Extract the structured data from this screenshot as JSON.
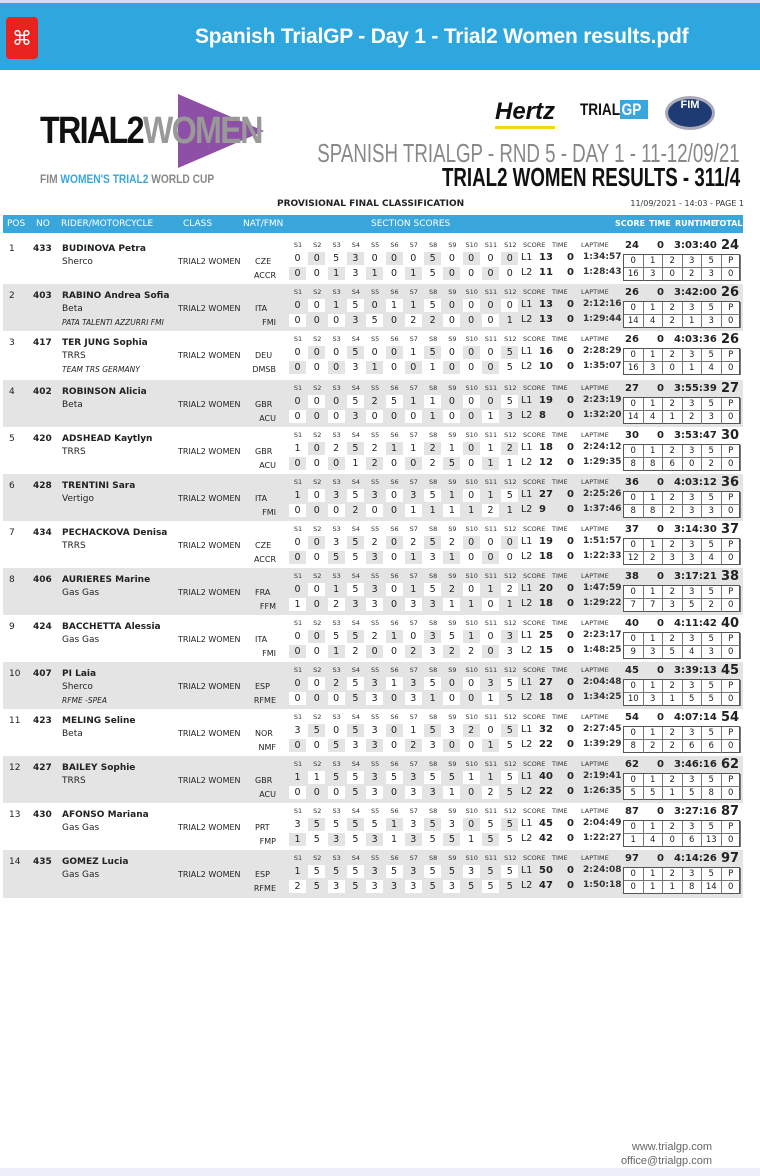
{
  "viewer": {
    "title": "Spanish TrialGP - Day 1 - Trial2 Women results.pdf",
    "icon": "pdf-icon"
  },
  "logo": {
    "text_main": "TRIAL2",
    "text_accent": "WOMEN",
    "sub_1": "FIM ",
    "sub_2": "WOMEN'S TRIAL2",
    "sub_3": " WORLD CUP"
  },
  "sponsors": {
    "hertz": "Hertz",
    "trialgp_1": "TRIAL",
    "trialgp_2": "GP",
    "fim": "FIM"
  },
  "header": {
    "event": "SPANISH TRIALGP - RND 5 - DAY 1 - 11-12/09/21",
    "results": "TRIAL2 WOMEN RESULTS - 311/4",
    "classification": "PROVISIONAL FINAL CLASSIFICATION",
    "stamp": "11/09/2021 - 14:03 - PAGE 1"
  },
  "columns": {
    "pos": "POS",
    "no": "NO",
    "rider": "RIDER/MOTORCYCLE",
    "class": "CLASS",
    "nat": "NAT/FMN",
    "sections": "SECTION SCORES",
    "score": "SCORE",
    "time": "TIME",
    "runtime": "RUNTIME",
    "total": "TOTAL"
  },
  "sub_columns": {
    "sections": [
      "S1",
      "S2",
      "S3",
      "S4",
      "S5",
      "S6",
      "S7",
      "S8",
      "S9",
      "S10",
      "S11",
      "S12"
    ],
    "score": "SCORE",
    "time": "TIME",
    "laptime": "LAPTIME",
    "breakdown": [
      "0",
      "1",
      "2",
      "3",
      "5",
      "P"
    ]
  },
  "riders": [
    {
      "pos": "1",
      "no": "433",
      "name": "BUDINOVA Petra",
      "bike": "Sherco",
      "team": "",
      "class": "TRIAL2 WOMEN",
      "nat": "CZE",
      "fmn": "ACCR",
      "laps": [
        {
          "lap": "L1",
          "s": [
            0,
            0,
            5,
            3,
            0,
            0,
            0,
            5,
            0,
            0,
            0,
            0
          ],
          "score": "13",
          "time": "0",
          "laptime": "1:34:57"
        },
        {
          "lap": "L2",
          "s": [
            0,
            0,
            1,
            3,
            1,
            0,
            1,
            5,
            0,
            0,
            0,
            0
          ],
          "score": "11",
          "time": "0",
          "laptime": "1:28:43"
        }
      ],
      "score": "24",
      "time": "0",
      "runtime": "3:03:40",
      "total": "24",
      "counts": [
        16,
        3,
        0,
        2,
        3,
        0
      ]
    },
    {
      "pos": "2",
      "no": "403",
      "name": "RABINO Andrea Sofia",
      "bike": "Beta",
      "team": "PATA TALENTI AZZURRI FMI",
      "class": "TRIAL2 WOMEN",
      "nat": "ITA",
      "fmn": "FMI",
      "laps": [
        {
          "lap": "L1",
          "s": [
            0,
            0,
            1,
            5,
            0,
            1,
            1,
            5,
            0,
            0,
            0,
            0
          ],
          "score": "13",
          "time": "0",
          "laptime": "2:12:16"
        },
        {
          "lap": "L2",
          "s": [
            0,
            0,
            0,
            3,
            5,
            0,
            2,
            2,
            0,
            0,
            0,
            1
          ],
          "score": "13",
          "time": "0",
          "laptime": "1:29:44"
        }
      ],
      "score": "26",
      "time": "0",
      "runtime": "3:42:00",
      "total": "26",
      "counts": [
        14,
        4,
        2,
        1,
        3,
        0
      ]
    },
    {
      "pos": "3",
      "no": "417",
      "name": "TER JUNG Sophia",
      "bike": "TRRS",
      "team": "TEAM TRS GERMANY",
      "class": "TRIAL2 WOMEN",
      "nat": "DEU",
      "fmn": "DMSB",
      "laps": [
        {
          "lap": "L1",
          "s": [
            0,
            0,
            0,
            5,
            0,
            0,
            1,
            5,
            0,
            0,
            0,
            5
          ],
          "score": "16",
          "time": "0",
          "laptime": "2:28:29"
        },
        {
          "lap": "L2",
          "s": [
            0,
            0,
            0,
            3,
            1,
            0,
            0,
            1,
            0,
            0,
            0,
            5
          ],
          "score": "10",
          "time": "0",
          "laptime": "1:35:07"
        }
      ],
      "score": "26",
      "time": "0",
      "runtime": "4:03:36",
      "total": "26",
      "counts": [
        16,
        3,
        0,
        1,
        4,
        0
      ]
    },
    {
      "pos": "4",
      "no": "402",
      "name": "ROBINSON Alicia",
      "bike": "Beta",
      "team": "",
      "class": "TRIAL2 WOMEN",
      "nat": "GBR",
      "fmn": "ACU",
      "laps": [
        {
          "lap": "L1",
          "s": [
            0,
            0,
            0,
            5,
            2,
            5,
            1,
            1,
            0,
            0,
            0,
            5
          ],
          "score": "19",
          "time": "0",
          "laptime": "2:23:19"
        },
        {
          "lap": "L2",
          "s": [
            0,
            0,
            0,
            3,
            0,
            0,
            0,
            1,
            0,
            0,
            1,
            3
          ],
          "score": "8",
          "time": "0",
          "laptime": "1:32:20"
        }
      ],
      "score": "27",
      "time": "0",
      "runtime": "3:55:39",
      "total": "27",
      "counts": [
        14,
        4,
        1,
        2,
        3,
        0
      ]
    },
    {
      "pos": "5",
      "no": "420",
      "name": "ADSHEAD Kaytlyn",
      "bike": "TRRS",
      "team": "",
      "class": "TRIAL2 WOMEN",
      "nat": "GBR",
      "fmn": "ACU",
      "laps": [
        {
          "lap": "L1",
          "s": [
            1,
            0,
            2,
            5,
            2,
            1,
            1,
            2,
            1,
            0,
            1,
            2
          ],
          "score": "18",
          "time": "0",
          "laptime": "2:24:12"
        },
        {
          "lap": "L2",
          "s": [
            0,
            0,
            0,
            1,
            2,
            0,
            0,
            2,
            5,
            0,
            1,
            1
          ],
          "score": "12",
          "time": "0",
          "laptime": "1:29:35"
        }
      ],
      "score": "30",
      "time": "0",
      "runtime": "3:53:47",
      "total": "30",
      "counts": [
        8,
        8,
        6,
        0,
        2,
        0
      ]
    },
    {
      "pos": "6",
      "no": "428",
      "name": "TRENTINI Sara",
      "bike": "Vertigo",
      "team": "",
      "class": "TRIAL2 WOMEN",
      "nat": "ITA",
      "fmn": "FMI",
      "laps": [
        {
          "lap": "L1",
          "s": [
            1,
            0,
            3,
            5,
            3,
            0,
            3,
            5,
            1,
            0,
            1,
            5
          ],
          "score": "27",
          "time": "0",
          "laptime": "2:25:26"
        },
        {
          "lap": "L2",
          "s": [
            0,
            0,
            0,
            2,
            0,
            0,
            1,
            1,
            1,
            1,
            2,
            1
          ],
          "score": "9",
          "time": "0",
          "laptime": "1:37:46"
        }
      ],
      "score": "36",
      "time": "0",
      "runtime": "4:03:12",
      "total": "36",
      "counts": [
        8,
        8,
        2,
        3,
        3,
        0
      ]
    },
    {
      "pos": "7",
      "no": "434",
      "name": "PECHACKOVA Denisa",
      "bike": "TRRS",
      "team": "",
      "class": "TRIAL2 WOMEN",
      "nat": "CZE",
      "fmn": "ACCR",
      "laps": [
        {
          "lap": "L1",
          "s": [
            0,
            0,
            3,
            5,
            2,
            0,
            2,
            5,
            2,
            0,
            0,
            0
          ],
          "score": "19",
          "time": "0",
          "laptime": "1:51:57"
        },
        {
          "lap": "L2",
          "s": [
            0,
            0,
            5,
            5,
            3,
            0,
            1,
            3,
            1,
            0,
            0,
            0
          ],
          "score": "18",
          "time": "0",
          "laptime": "1:22:33"
        }
      ],
      "score": "37",
      "time": "0",
      "runtime": "3:14:30",
      "total": "37",
      "counts": [
        12,
        2,
        3,
        3,
        4,
        0
      ]
    },
    {
      "pos": "8",
      "no": "406",
      "name": "AURIERES Marine",
      "bike": "Gas Gas",
      "team": "",
      "class": "TRIAL2 WOMEN",
      "nat": "FRA",
      "fmn": "FFM",
      "laps": [
        {
          "lap": "L1",
          "s": [
            0,
            0,
            1,
            5,
            3,
            0,
            1,
            5,
            2,
            0,
            1,
            2
          ],
          "score": "20",
          "time": "0",
          "laptime": "1:47:59"
        },
        {
          "lap": "L2",
          "s": [
            1,
            0,
            2,
            3,
            3,
            0,
            3,
            3,
            1,
            1,
            0,
            1
          ],
          "score": "18",
          "time": "0",
          "laptime": "1:29:22"
        }
      ],
      "score": "38",
      "time": "0",
      "runtime": "3:17:21",
      "total": "38",
      "counts": [
        7,
        7,
        3,
        5,
        2,
        0
      ]
    },
    {
      "pos": "9",
      "no": "424",
      "name": "BACCHETTA Alessia",
      "bike": "Gas Gas",
      "team": "",
      "class": "TRIAL2 WOMEN",
      "nat": "ITA",
      "fmn": "FMI",
      "laps": [
        {
          "lap": "L1",
          "s": [
            0,
            0,
            5,
            5,
            2,
            1,
            0,
            3,
            5,
            1,
            0,
            3
          ],
          "score": "25",
          "time": "0",
          "laptime": "2:23:17"
        },
        {
          "lap": "L2",
          "s": [
            0,
            0,
            1,
            2,
            0,
            0,
            2,
            3,
            2,
            2,
            0,
            3
          ],
          "score": "15",
          "time": "0",
          "laptime": "1:48:25"
        }
      ],
      "score": "40",
      "time": "0",
      "runtime": "4:11:42",
      "total": "40",
      "counts": [
        9,
        3,
        5,
        4,
        3,
        0
      ]
    },
    {
      "pos": "10",
      "no": "407",
      "name": "PI Laia",
      "bike": "Sherco",
      "team": "RFME -SPEA",
      "class": "TRIAL2 WOMEN",
      "nat": "ESP",
      "fmn": "RFME",
      "laps": [
        {
          "lap": "L1",
          "s": [
            0,
            0,
            2,
            5,
            3,
            1,
            3,
            5,
            0,
            0,
            3,
            5
          ],
          "score": "27",
          "time": "0",
          "laptime": "2:04:48"
        },
        {
          "lap": "L2",
          "s": [
            0,
            0,
            0,
            5,
            3,
            0,
            3,
            1,
            0,
            0,
            1,
            5
          ],
          "score": "18",
          "time": "0",
          "laptime": "1:34:25"
        }
      ],
      "score": "45",
      "time": "0",
      "runtime": "3:39:13",
      "total": "45",
      "counts": [
        10,
        3,
        1,
        5,
        5,
        0
      ]
    },
    {
      "pos": "11",
      "no": "423",
      "name": "MELING Seline",
      "bike": "Beta",
      "team": "",
      "class": "TRIAL2 WOMEN",
      "nat": "NOR",
      "fmn": "NMF",
      "laps": [
        {
          "lap": "L1",
          "s": [
            3,
            5,
            0,
            5,
            3,
            0,
            1,
            5,
            3,
            2,
            0,
            5
          ],
          "score": "32",
          "time": "0",
          "laptime": "2:27:45"
        },
        {
          "lap": "L2",
          "s": [
            0,
            0,
            5,
            3,
            3,
            0,
            2,
            3,
            0,
            0,
            1,
            5
          ],
          "score": "22",
          "time": "0",
          "laptime": "1:39:29"
        }
      ],
      "score": "54",
      "time": "0",
      "runtime": "4:07:14",
      "total": "54",
      "counts": [
        8,
        2,
        2,
        6,
        6,
        0
      ]
    },
    {
      "pos": "12",
      "no": "427",
      "name": "BAILEY Sophie",
      "bike": "TRRS",
      "team": "",
      "class": "TRIAL2 WOMEN",
      "nat": "GBR",
      "fmn": "ACU",
      "laps": [
        {
          "lap": "L1",
          "s": [
            1,
            1,
            5,
            5,
            3,
            5,
            3,
            5,
            5,
            1,
            1,
            5
          ],
          "score": "40",
          "time": "0",
          "laptime": "2:19:41"
        },
        {
          "lap": "L2",
          "s": [
            0,
            0,
            0,
            5,
            3,
            0,
            3,
            3,
            1,
            0,
            2,
            5
          ],
          "score": "22",
          "time": "0",
          "laptime": "1:26:35"
        }
      ],
      "score": "62",
      "time": "0",
      "runtime": "3:46:16",
      "total": "62",
      "counts": [
        5,
        5,
        1,
        5,
        8,
        0
      ]
    },
    {
      "pos": "13",
      "no": "430",
      "name": "AFONSO Mariana",
      "bike": "Gas Gas",
      "team": "",
      "class": "TRIAL2 WOMEN",
      "nat": "PRT",
      "fmn": "FMP",
      "laps": [
        {
          "lap": "L1",
          "s": [
            3,
            5,
            5,
            5,
            5,
            1,
            3,
            5,
            3,
            0,
            5,
            5
          ],
          "score": "45",
          "time": "0",
          "laptime": "2:04:49"
        },
        {
          "lap": "L2",
          "s": [
            1,
            5,
            3,
            5,
            3,
            1,
            3,
            5,
            5,
            1,
            5,
            5
          ],
          "score": "42",
          "time": "0",
          "laptime": "1:22:27"
        }
      ],
      "score": "87",
      "time": "0",
      "runtime": "3:27:16",
      "total": "87",
      "counts": [
        1,
        4,
        0,
        6,
        13,
        0
      ]
    },
    {
      "pos": "14",
      "no": "435",
      "name": "GOMEZ Lucia",
      "bike": "Gas Gas",
      "team": "",
      "class": "TRIAL2 WOMEN",
      "nat": "ESP",
      "fmn": "RFME",
      "laps": [
        {
          "lap": "L1",
          "s": [
            1,
            5,
            5,
            5,
            3,
            5,
            3,
            5,
            5,
            3,
            5,
            5
          ],
          "score": "50",
          "time": "0",
          "laptime": "2:24:08"
        },
        {
          "lap": "L2",
          "s": [
            2,
            5,
            3,
            5,
            3,
            3,
            3,
            5,
            3,
            5,
            5,
            5
          ],
          "score": "47",
          "time": "0",
          "laptime": "1:50:18"
        }
      ],
      "score": "97",
      "time": "0",
      "runtime": "4:14:26",
      "total": "97",
      "counts": [
        0,
        1,
        1,
        8,
        14,
        0
      ]
    }
  ],
  "footer": {
    "website": "www.trialgp.com",
    "email": "office@trialgp.com"
  }
}
